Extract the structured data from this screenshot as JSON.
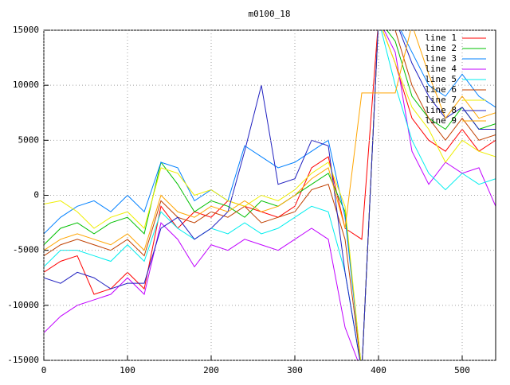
{
  "chart_data": {
    "type": "line",
    "title": "m0100_18",
    "x": [
      0,
      20,
      40,
      60,
      80,
      100,
      120,
      140,
      160,
      180,
      200,
      220,
      240,
      260,
      280,
      300,
      320,
      340,
      360,
      380,
      400,
      420,
      440,
      460,
      480,
      500,
      520,
      540
    ],
    "xlim": [
      0,
      540
    ],
    "xticks": [
      0,
      100,
      200,
      300,
      400,
      500
    ],
    "ylim": [
      -15000,
      15000
    ],
    "yticks": [
      -15000,
      -10000,
      -5000,
      0,
      5000,
      10000,
      15000
    ],
    "grid": true,
    "legend": "top-right",
    "series": [
      {
        "name": "line 1",
        "color": "#ff0000",
        "values": [
          -7000,
          -6000,
          -5500,
          -9000,
          -8500,
          -7000,
          -8500,
          -1000,
          -3000,
          -1500,
          -2000,
          -500,
          -1000,
          -1500,
          -2000,
          -1000,
          2500,
          3500,
          -3000,
          -4000,
          16000,
          12000,
          7000,
          5000,
          4000,
          6000,
          4000,
          5000
        ]
      },
      {
        "name": "line 2",
        "color": "#00c000",
        "values": [
          -4500,
          -3000,
          -2500,
          -3500,
          -2500,
          -2000,
          -3500,
          3000,
          1000,
          -1500,
          -500,
          -1000,
          -2000,
          -500,
          -1000,
          0,
          1000,
          2000,
          -1500,
          -16000,
          16000,
          14000,
          9000,
          7000,
          6000,
          8000,
          6000,
          6500
        ]
      },
      {
        "name": "line 3",
        "color": "#0080ff",
        "values": [
          -3500,
          -2000,
          -1000,
          -500,
          -1500,
          0,
          -1500,
          3000,
          2500,
          -500,
          500,
          -500,
          4500,
          3500,
          2500,
          3000,
          4000,
          5000,
          -2000,
          -16000,
          16000,
          16000,
          13000,
          10000,
          9000,
          11000,
          9000,
          8000
        ]
      },
      {
        "name": "line 4",
        "color": "#c000ff",
        "values": [
          -12500,
          -11000,
          -10000,
          -9500,
          -9000,
          -7500,
          -9000,
          -2500,
          -4000,
          -6500,
          -4500,
          -5000,
          -4000,
          -4500,
          -5000,
          -4000,
          -3000,
          -4000,
          -12000,
          -16000,
          16000,
          13000,
          4000,
          1000,
          3000,
          2000,
          2500,
          -1000
        ]
      },
      {
        "name": "line 5",
        "color": "#00eeee",
        "values": [
          -6500,
          -5000,
          -5000,
          -5500,
          -6000,
          -4500,
          -6000,
          -1500,
          -3000,
          -4000,
          -3000,
          -3500,
          -2500,
          -3500,
          -3000,
          -2000,
          -1000,
          -1500,
          -7000,
          -16000,
          16000,
          10000,
          5000,
          2000,
          500,
          2000,
          1000,
          1500
        ]
      },
      {
        "name": "line 6",
        "color": "#c04000",
        "values": [
          -5500,
          -4500,
          -4000,
          -4500,
          -5000,
          -4000,
          -5500,
          -500,
          -2000,
          -2500,
          -1500,
          -2000,
          -1000,
          -2500,
          -2000,
          -1500,
          500,
          1000,
          -4000,
          -16000,
          16000,
          15000,
          10000,
          7000,
          5000,
          7000,
          5000,
          5500
        ]
      },
      {
        "name": "line 7",
        "color": "#eeee00",
        "values": [
          -800,
          -500,
          -1500,
          -3000,
          -2000,
          -1500,
          -3000,
          2500,
          2000,
          0,
          500,
          -500,
          -1000,
          0,
          -500,
          500,
          2000,
          3000,
          -1000,
          -16000,
          16000,
          12000,
          8000,
          6000,
          3000,
          5000,
          4000,
          3500
        ]
      },
      {
        "name": "line 8",
        "color": "#2020c0",
        "values": [
          -7500,
          -8000,
          -7000,
          -7500,
          -8500,
          -8000,
          -8000,
          -3000,
          -2000,
          -4000,
          -3000,
          -1500,
          4000,
          10000,
          1000,
          1500,
          5000,
          4500,
          -7000,
          -16000,
          16000,
          16000,
          12000,
          9000,
          7000,
          8000,
          6000,
          6000
        ]
      },
      {
        "name": "line 9",
        "color": "#ffa500",
        "values": [
          -5000,
          -4000,
          -3500,
          -4000,
          -4500,
          -3500,
          -5000,
          0,
          -1500,
          -2000,
          -1000,
          -1500,
          -500,
          -1500,
          -1000,
          0,
          1500,
          2500,
          -3000,
          9300,
          9300,
          9300,
          15500,
          11000,
          7000,
          9000,
          7000,
          7500
        ]
      }
    ]
  }
}
